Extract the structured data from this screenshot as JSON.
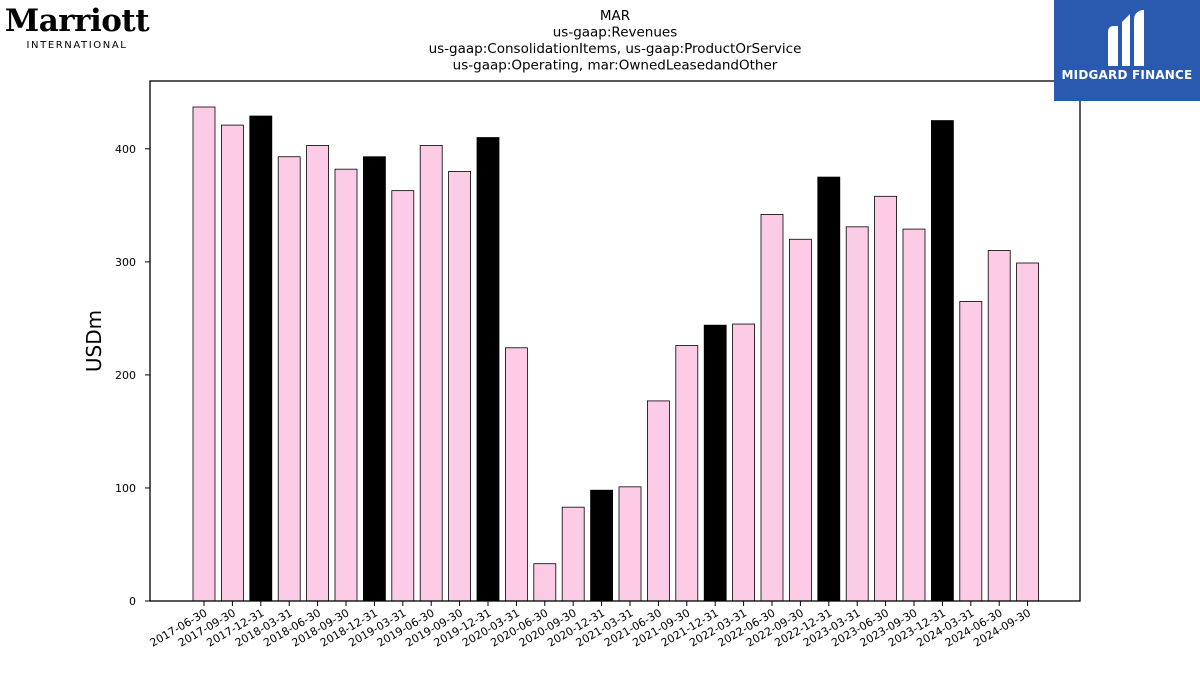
{
  "brand": {
    "company_logo_word": "Marriott",
    "company_logo_sub": "INTERNATIONAL",
    "publisher_logo_text": "MIDGARD FINANCE"
  },
  "colors": {
    "bar_default": "#fccbe5",
    "bar_highlight": "#000000",
    "bar_edge": "#000000",
    "publisher_blue": "#2a5ab0"
  },
  "chart_data": {
    "type": "bar",
    "title_lines": [
      "MAR",
      "us-gaap:Revenues",
      "us-gaap:ConsolidationItems, us-gaap:ProductOrService",
      "us-gaap:Operating, mar:OwnedLeasedandOther"
    ],
    "xlabel": "",
    "ylabel": "USDm",
    "ylim": [
      0,
      460
    ],
    "yticks": [
      0,
      100,
      200,
      300,
      400
    ],
    "grid": false,
    "legend": "none",
    "categories": [
      "2017-06-30",
      "2017-09-30",
      "2017-12-31",
      "2018-03-31",
      "2018-06-30",
      "2018-09-30",
      "2018-12-31",
      "2019-03-31",
      "2019-06-30",
      "2019-09-30",
      "2019-12-31",
      "2020-03-31",
      "2020-06-30",
      "2020-09-30",
      "2020-12-31",
      "2021-03-31",
      "2021-06-30",
      "2021-09-30",
      "2021-12-31",
      "2022-03-31",
      "2022-06-30",
      "2022-09-30",
      "2022-12-31",
      "2023-03-31",
      "2023-06-30",
      "2023-09-30",
      "2023-12-31",
      "2024-03-31",
      "2024-06-30",
      "2024-09-30"
    ],
    "values": [
      437,
      421,
      429,
      393,
      403,
      382,
      393,
      363,
      403,
      380,
      410,
      224,
      33,
      83,
      98,
      101,
      177,
      226,
      244,
      245,
      342,
      320,
      375,
      331,
      358,
      329,
      425,
      265,
      310,
      299
    ],
    "highlighted": [
      false,
      false,
      true,
      false,
      false,
      false,
      true,
      false,
      false,
      false,
      true,
      false,
      false,
      false,
      true,
      false,
      false,
      false,
      true,
      false,
      false,
      false,
      true,
      false,
      false,
      false,
      true,
      false,
      false,
      false
    ]
  }
}
